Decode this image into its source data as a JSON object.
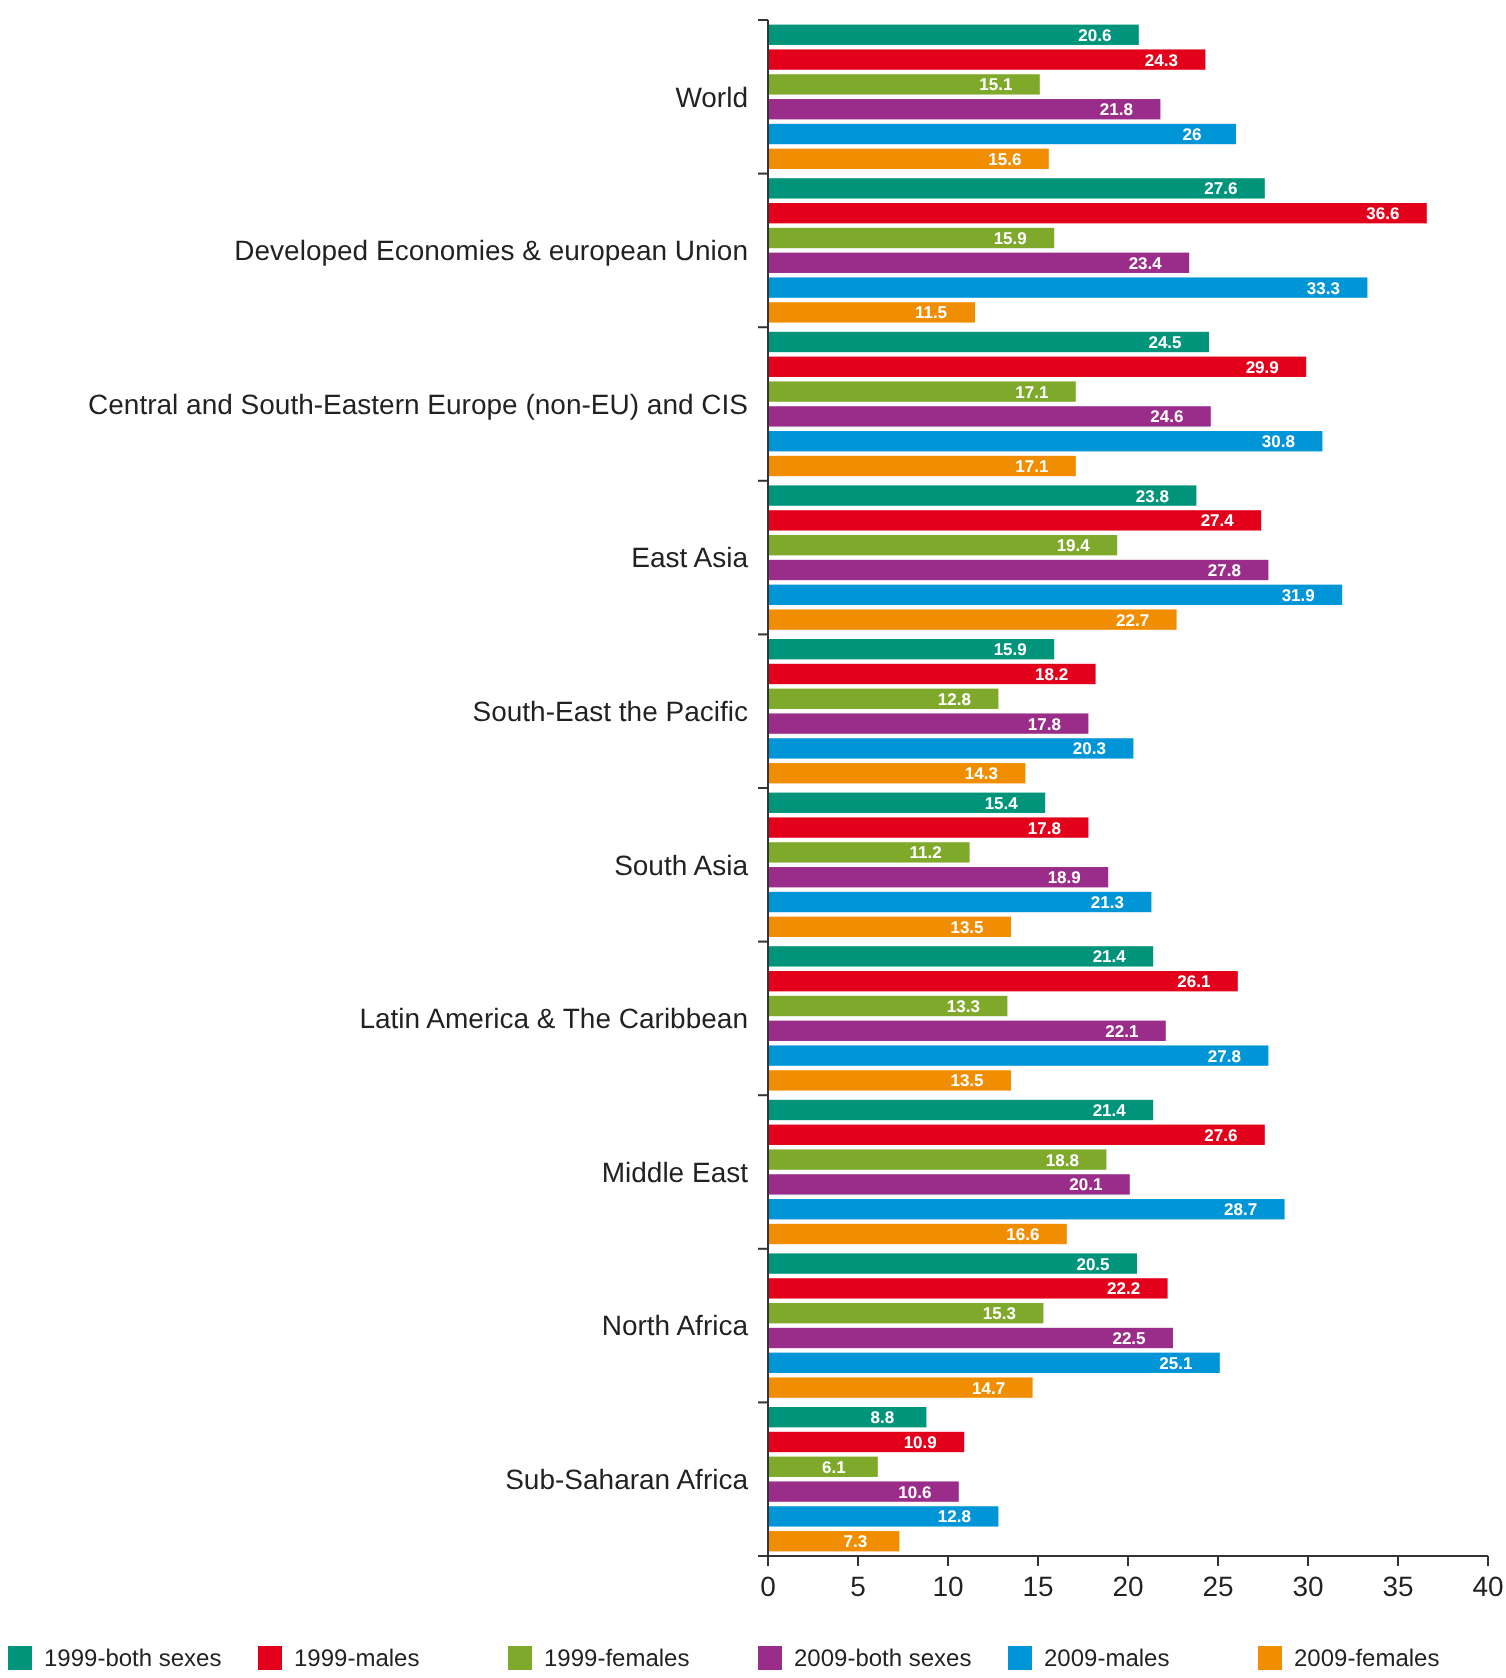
{
  "chart_data": {
    "type": "bar",
    "orientation": "horizontal",
    "categories": [
      "World",
      "Developed Economies & european Union",
      "Central and South-Eastern Europe (non-EU) and CIS",
      "East Asia",
      "South-East the Pacific",
      "South Asia",
      "Latin America & The Caribbean",
      "Middle East",
      "North Africa",
      "Sub-Saharan Africa"
    ],
    "series": [
      {
        "name": "1999-both sexes",
        "color": "#00957a",
        "values": [
          20.6,
          27.6,
          24.5,
          23.8,
          15.9,
          15.4,
          21.4,
          21.4,
          20.5,
          8.8
        ]
      },
      {
        "name": "1999-males",
        "color": "#e2001a",
        "values": [
          24.3,
          36.6,
          29.9,
          27.4,
          18.2,
          17.8,
          26.1,
          27.6,
          22.2,
          10.9
        ]
      },
      {
        "name": "1999-females",
        "color": "#7fa92a",
        "values": [
          15.1,
          15.9,
          17.1,
          19.4,
          12.8,
          11.2,
          13.3,
          18.8,
          15.3,
          6.1
        ]
      },
      {
        "name": "2009-both sexes",
        "color": "#9b2d8a",
        "values": [
          21.8,
          23.4,
          24.6,
          27.8,
          17.8,
          18.9,
          22.1,
          20.1,
          22.5,
          10.6
        ]
      },
      {
        "name": "2009-males",
        "color": "#0095d6",
        "values": [
          26,
          33.3,
          30.8,
          31.9,
          20.3,
          21.3,
          27.8,
          28.7,
          25.1,
          12.8
        ]
      },
      {
        "name": "2009-females",
        "color": "#f18d00",
        "values": [
          15.6,
          11.5,
          17.1,
          22.7,
          14.3,
          13.5,
          13.5,
          16.6,
          14.7,
          7.3
        ]
      }
    ],
    "xlim": [
      0,
      40
    ],
    "xticks": [
      0,
      5,
      10,
      15,
      20,
      25,
      30,
      35,
      40
    ],
    "data_labels": true,
    "legend": "bottom",
    "grid": false
  }
}
